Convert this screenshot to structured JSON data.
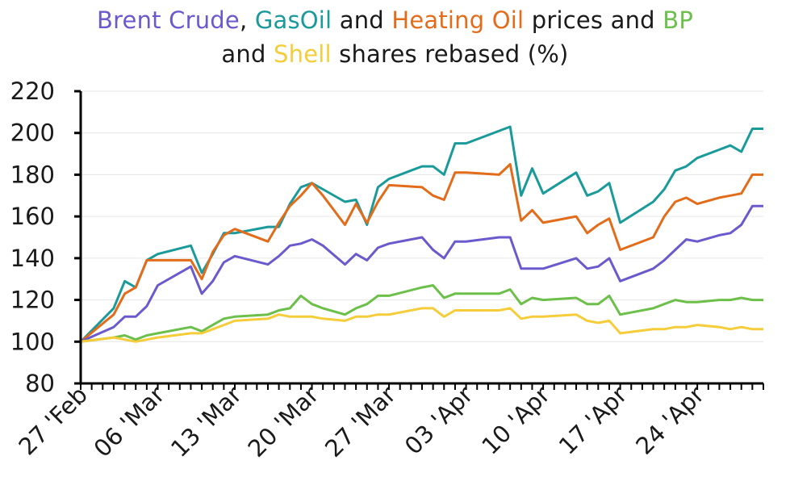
{
  "chart_data": {
    "type": "line",
    "title_parts_line1": [
      {
        "text": "Brent Crude",
        "color": "#6a5acd"
      },
      {
        "text": ", ",
        "color": "#1a1a1a"
      },
      {
        "text": "GasOil",
        "color": "#1a9a9a"
      },
      {
        "text": " and ",
        "color": "#1a1a1a"
      },
      {
        "text": "Heating Oil",
        "color": "#e36c1a"
      },
      {
        "text": " prices and ",
        "color": "#1a1a1a"
      },
      {
        "text": "BP",
        "color": "#6cc04a"
      }
    ],
    "title_parts_line2": [
      {
        "text": "and ",
        "color": "#1a1a1a"
      },
      {
        "text": "Shell",
        "color": "#f5cd3a"
      },
      {
        "text": " shares rebased (%)",
        "color": "#1a1a1a"
      }
    ],
    "xlabel": "",
    "ylabel": "",
    "ylim": [
      80,
      220
    ],
    "yticks": [
      80,
      100,
      120,
      140,
      160,
      180,
      200,
      220
    ],
    "xlim": [
      0,
      62
    ],
    "xticks": [
      {
        "x": 0,
        "label": "27 'Feb"
      },
      {
        "x": 7,
        "label": "06 'Mar"
      },
      {
        "x": 14,
        "label": "13 'Mar"
      },
      {
        "x": 21,
        "label": "20 'Mar"
      },
      {
        "x": 28,
        "label": "27 'Mar"
      },
      {
        "x": 35,
        "label": "03 'Apr"
      },
      {
        "x": 42,
        "label": "10 'Apr"
      },
      {
        "x": 49,
        "label": "17 'Apr"
      },
      {
        "x": 56,
        "label": "24 'Apr"
      }
    ],
    "grid": "horizontal",
    "series": [
      {
        "name": "GasOil",
        "color": "#1a9a9a",
        "points": [
          [
            0,
            100
          ],
          [
            3,
            116
          ],
          [
            4,
            129
          ],
          [
            5,
            126
          ],
          [
            6,
            139
          ],
          [
            7,
            142
          ],
          [
            10,
            146
          ],
          [
            11,
            133
          ],
          [
            12,
            142
          ],
          [
            13,
            152
          ],
          [
            14,
            152
          ],
          [
            17,
            155
          ],
          [
            18,
            155
          ],
          [
            19,
            166
          ],
          [
            20,
            174
          ],
          [
            21,
            176
          ],
          [
            22,
            173
          ],
          [
            24,
            167
          ],
          [
            25,
            168
          ],
          [
            26,
            156
          ],
          [
            27,
            174
          ],
          [
            28,
            178
          ],
          [
            31,
            184
          ],
          [
            32,
            184
          ],
          [
            33,
            180
          ],
          [
            34,
            195
          ],
          [
            35,
            195
          ],
          [
            39,
            203
          ],
          [
            40,
            170
          ],
          [
            41,
            183
          ],
          [
            42,
            171
          ],
          [
            45,
            181
          ],
          [
            46,
            170
          ],
          [
            47,
            172
          ],
          [
            48,
            176
          ],
          [
            49,
            157
          ],
          [
            52,
            167
          ],
          [
            53,
            173
          ],
          [
            54,
            182
          ],
          [
            55,
            184
          ],
          [
            56,
            188
          ],
          [
            58,
            192
          ],
          [
            59,
            194
          ],
          [
            60,
            191
          ],
          [
            61,
            202
          ],
          [
            62,
            202
          ]
        ]
      },
      {
        "name": "Heating Oil",
        "color": "#e36c1a",
        "points": [
          [
            0,
            100
          ],
          [
            3,
            113
          ],
          [
            4,
            123
          ],
          [
            5,
            126
          ],
          [
            6,
            139
          ],
          [
            7,
            139
          ],
          [
            10,
            139
          ],
          [
            11,
            130
          ],
          [
            12,
            143
          ],
          [
            13,
            151
          ],
          [
            14,
            154
          ],
          [
            17,
            148
          ],
          [
            18,
            157
          ],
          [
            19,
            165
          ],
          [
            20,
            170
          ],
          [
            21,
            176
          ],
          [
            22,
            170
          ],
          [
            24,
            156
          ],
          [
            25,
            166
          ],
          [
            26,
            157
          ],
          [
            27,
            167
          ],
          [
            28,
            175
          ],
          [
            31,
            174
          ],
          [
            32,
            170
          ],
          [
            33,
            168
          ],
          [
            34,
            181
          ],
          [
            35,
            181
          ],
          [
            38,
            180
          ],
          [
            39,
            185
          ],
          [
            40,
            158
          ],
          [
            41,
            163
          ],
          [
            42,
            157
          ],
          [
            45,
            160
          ],
          [
            46,
            152
          ],
          [
            47,
            156
          ],
          [
            48,
            159
          ],
          [
            49,
            144
          ],
          [
            52,
            150
          ],
          [
            53,
            160
          ],
          [
            54,
            167
          ],
          [
            55,
            169
          ],
          [
            56,
            166
          ],
          [
            58,
            169
          ],
          [
            59,
            170
          ],
          [
            60,
            171
          ],
          [
            61,
            180
          ],
          [
            62,
            180
          ]
        ]
      },
      {
        "name": "Brent Crude",
        "color": "#6a5acd",
        "points": [
          [
            0,
            100
          ],
          [
            3,
            107
          ],
          [
            4,
            112
          ],
          [
            5,
            112
          ],
          [
            6,
            117
          ],
          [
            7,
            127
          ],
          [
            10,
            136
          ],
          [
            11,
            123
          ],
          [
            12,
            129
          ],
          [
            13,
            138
          ],
          [
            14,
            141
          ],
          [
            17,
            137
          ],
          [
            18,
            141
          ],
          [
            19,
            146
          ],
          [
            20,
            147
          ],
          [
            21,
            149
          ],
          [
            22,
            146
          ],
          [
            24,
            137
          ],
          [
            25,
            142
          ],
          [
            26,
            139
          ],
          [
            27,
            145
          ],
          [
            28,
            147
          ],
          [
            31,
            150
          ],
          [
            32,
            144
          ],
          [
            33,
            140
          ],
          [
            34,
            148
          ],
          [
            35,
            148
          ],
          [
            38,
            150
          ],
          [
            39,
            150
          ],
          [
            40,
            135
          ],
          [
            41,
            135
          ],
          [
            42,
            135
          ],
          [
            45,
            140
          ],
          [
            46,
            135
          ],
          [
            47,
            136
          ],
          [
            48,
            140
          ],
          [
            49,
            129
          ],
          [
            52,
            135
          ],
          [
            53,
            139
          ],
          [
            54,
            144
          ],
          [
            55,
            149
          ],
          [
            56,
            148
          ],
          [
            58,
            151
          ],
          [
            59,
            152
          ],
          [
            60,
            156
          ],
          [
            61,
            165
          ],
          [
            62,
            165
          ]
        ]
      },
      {
        "name": "BP",
        "color": "#6cc04a",
        "points": [
          [
            0,
            100
          ],
          [
            3,
            102
          ],
          [
            4,
            103
          ],
          [
            5,
            101
          ],
          [
            6,
            103
          ],
          [
            7,
            104
          ],
          [
            10,
            107
          ],
          [
            11,
            105
          ],
          [
            12,
            108
          ],
          [
            13,
            111
          ],
          [
            14,
            112
          ],
          [
            17,
            113
          ],
          [
            18,
            115
          ],
          [
            19,
            116
          ],
          [
            20,
            122
          ],
          [
            21,
            118
          ],
          [
            22,
            116
          ],
          [
            24,
            113
          ],
          [
            25,
            116
          ],
          [
            26,
            118
          ],
          [
            27,
            122
          ],
          [
            28,
            122
          ],
          [
            31,
            126
          ],
          [
            32,
            127
          ],
          [
            33,
            121
          ],
          [
            34,
            123
          ],
          [
            35,
            123
          ],
          [
            38,
            123
          ],
          [
            39,
            125
          ],
          [
            40,
            118
          ],
          [
            41,
            121
          ],
          [
            42,
            120
          ],
          [
            45,
            121
          ],
          [
            46,
            118
          ],
          [
            47,
            118
          ],
          [
            48,
            122
          ],
          [
            49,
            113
          ],
          [
            52,
            116
          ],
          [
            53,
            118
          ],
          [
            54,
            120
          ],
          [
            55,
            119
          ],
          [
            56,
            119
          ],
          [
            58,
            120
          ],
          [
            59,
            120
          ],
          [
            60,
            121
          ],
          [
            61,
            120
          ],
          [
            62,
            120
          ]
        ]
      },
      {
        "name": "Shell",
        "color": "#f5cd3a",
        "points": [
          [
            0,
            100
          ],
          [
            3,
            102
          ],
          [
            4,
            101
          ],
          [
            5,
            100
          ],
          [
            6,
            101
          ],
          [
            7,
            102
          ],
          [
            10,
            104
          ],
          [
            11,
            104
          ],
          [
            12,
            106
          ],
          [
            13,
            108
          ],
          [
            14,
            110
          ],
          [
            17,
            111
          ],
          [
            18,
            113
          ],
          [
            19,
            112
          ],
          [
            20,
            112
          ],
          [
            21,
            112
          ],
          [
            22,
            111
          ],
          [
            24,
            110
          ],
          [
            25,
            112
          ],
          [
            26,
            112
          ],
          [
            27,
            113
          ],
          [
            28,
            113
          ],
          [
            31,
            116
          ],
          [
            32,
            116
          ],
          [
            33,
            112
          ],
          [
            34,
            115
          ],
          [
            35,
            115
          ],
          [
            38,
            115
          ],
          [
            39,
            116
          ],
          [
            40,
            111
          ],
          [
            41,
            112
          ],
          [
            42,
            112
          ],
          [
            45,
            113
          ],
          [
            46,
            110
          ],
          [
            47,
            109
          ],
          [
            48,
            110
          ],
          [
            49,
            104
          ],
          [
            52,
            106
          ],
          [
            53,
            106
          ],
          [
            54,
            107
          ],
          [
            55,
            107
          ],
          [
            56,
            108
          ],
          [
            58,
            107
          ],
          [
            59,
            106
          ],
          [
            60,
            107
          ],
          [
            61,
            106
          ],
          [
            62,
            106
          ]
        ]
      }
    ]
  }
}
